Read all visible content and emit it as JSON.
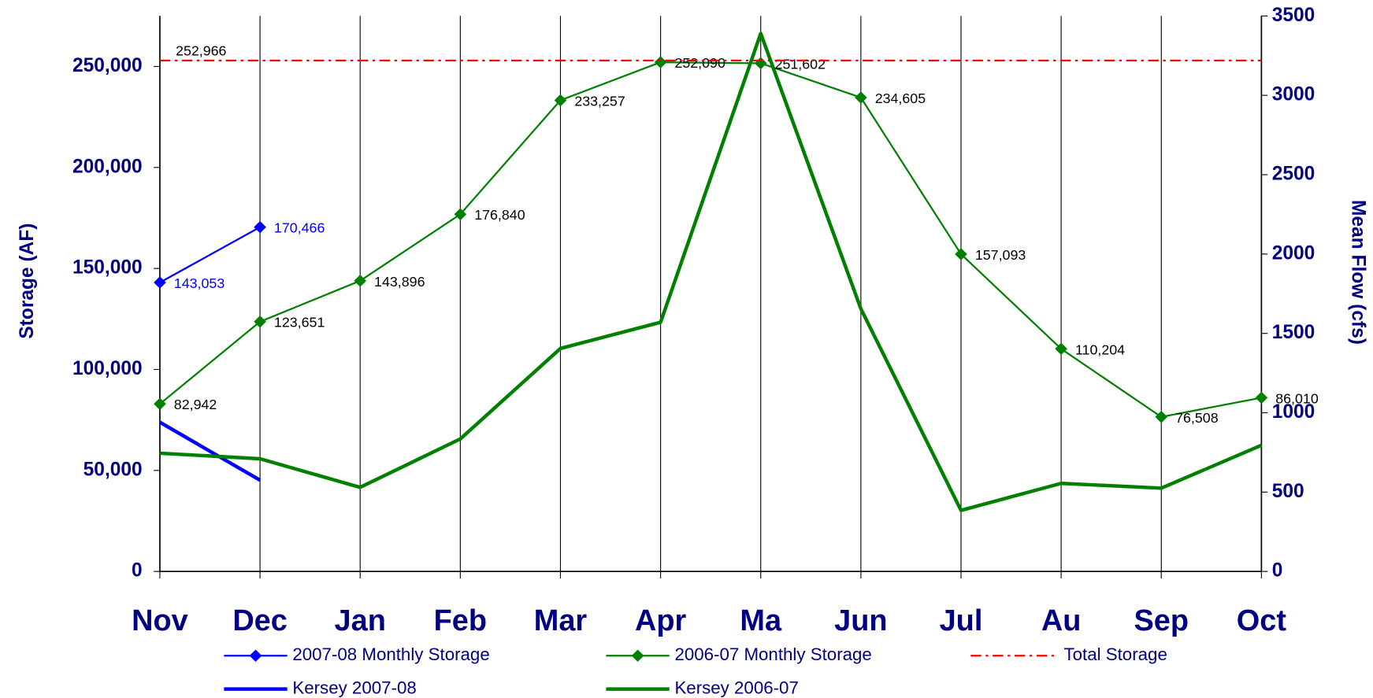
{
  "chart_data": {
    "type": "line",
    "categories": [
      "Nov",
      "Dec",
      "Jan",
      "Feb",
      "Mar",
      "Apr",
      "Ma",
      "Jun",
      "Jul",
      "Au",
      "Sep",
      "Oct"
    ],
    "y_label": "Storage (AF)",
    "y2_label": "Mean Flow (cfs)",
    "ylim": [
      0,
      275000
    ],
    "yticks": [
      0,
      {
        "value": 50000,
        "label": "50,000"
      },
      {
        "value": 100000,
        "label": "100,000"
      },
      {
        "value": 150000,
        "label": "150,000"
      },
      {
        "value": 200000,
        "label": "200,000"
      },
      {
        "value": 250000,
        "label": "250,000"
      }
    ],
    "y2lim": [
      0,
      3500
    ],
    "y2ticks": [
      0,
      500,
      1000,
      1500,
      2000,
      2500,
      3000,
      3500
    ],
    "grid": true,
    "series": [
      {
        "name": "2007-08 Monthly Storage",
        "color": "#0000ff",
        "markers": true,
        "width": 2,
        "values": [
          143053,
          170466,
          null,
          null,
          null,
          null,
          null,
          null,
          null,
          null,
          null,
          null
        ],
        "value_labels": [
          "143,053",
          "170,466",
          null,
          null,
          null,
          null,
          null,
          null,
          null,
          null,
          null,
          null
        ]
      },
      {
        "name": "2006-07 Monthly Storage",
        "color": "#008000",
        "markers": true,
        "width": 2,
        "values": [
          82942,
          123651,
          143896,
          176840,
          233257,
          252090,
          251602,
          234605,
          157093,
          110204,
          76508,
          86010
        ],
        "value_labels": [
          "82,942",
          "123,651",
          "143,896",
          "176,840",
          "233,257",
          "252,090",
          "251,602",
          "234,605",
          "157,093",
          "110,204",
          "76,508",
          "86,010"
        ]
      },
      {
        "name": "Total Storage",
        "color": "#ff0000",
        "dash": true,
        "width": 2,
        "values": [
          252966,
          252966,
          252966,
          252966,
          252966,
          252966,
          252966,
          252966,
          252966,
          252966,
          252966,
          252966
        ],
        "value_labels": [
          "252,966",
          null,
          null,
          null,
          null,
          null,
          null,
          null,
          null,
          null,
          null,
          null
        ]
      },
      {
        "name": "Kersey 2007-08",
        "color": "#0000ff",
        "axis": "y2",
        "width": 4,
        "values": [
          940,
          575,
          null,
          null,
          null,
          null,
          null,
          null,
          null,
          null,
          null,
          null
        ]
      },
      {
        "name": "Kersey 2006-07",
        "color": "#008000",
        "axis": "y2",
        "width": 4,
        "values": [
          745,
          710,
          530,
          835,
          1405,
          1570,
          3390,
          1655,
          385,
          555,
          525,
          795
        ]
      }
    ]
  }
}
